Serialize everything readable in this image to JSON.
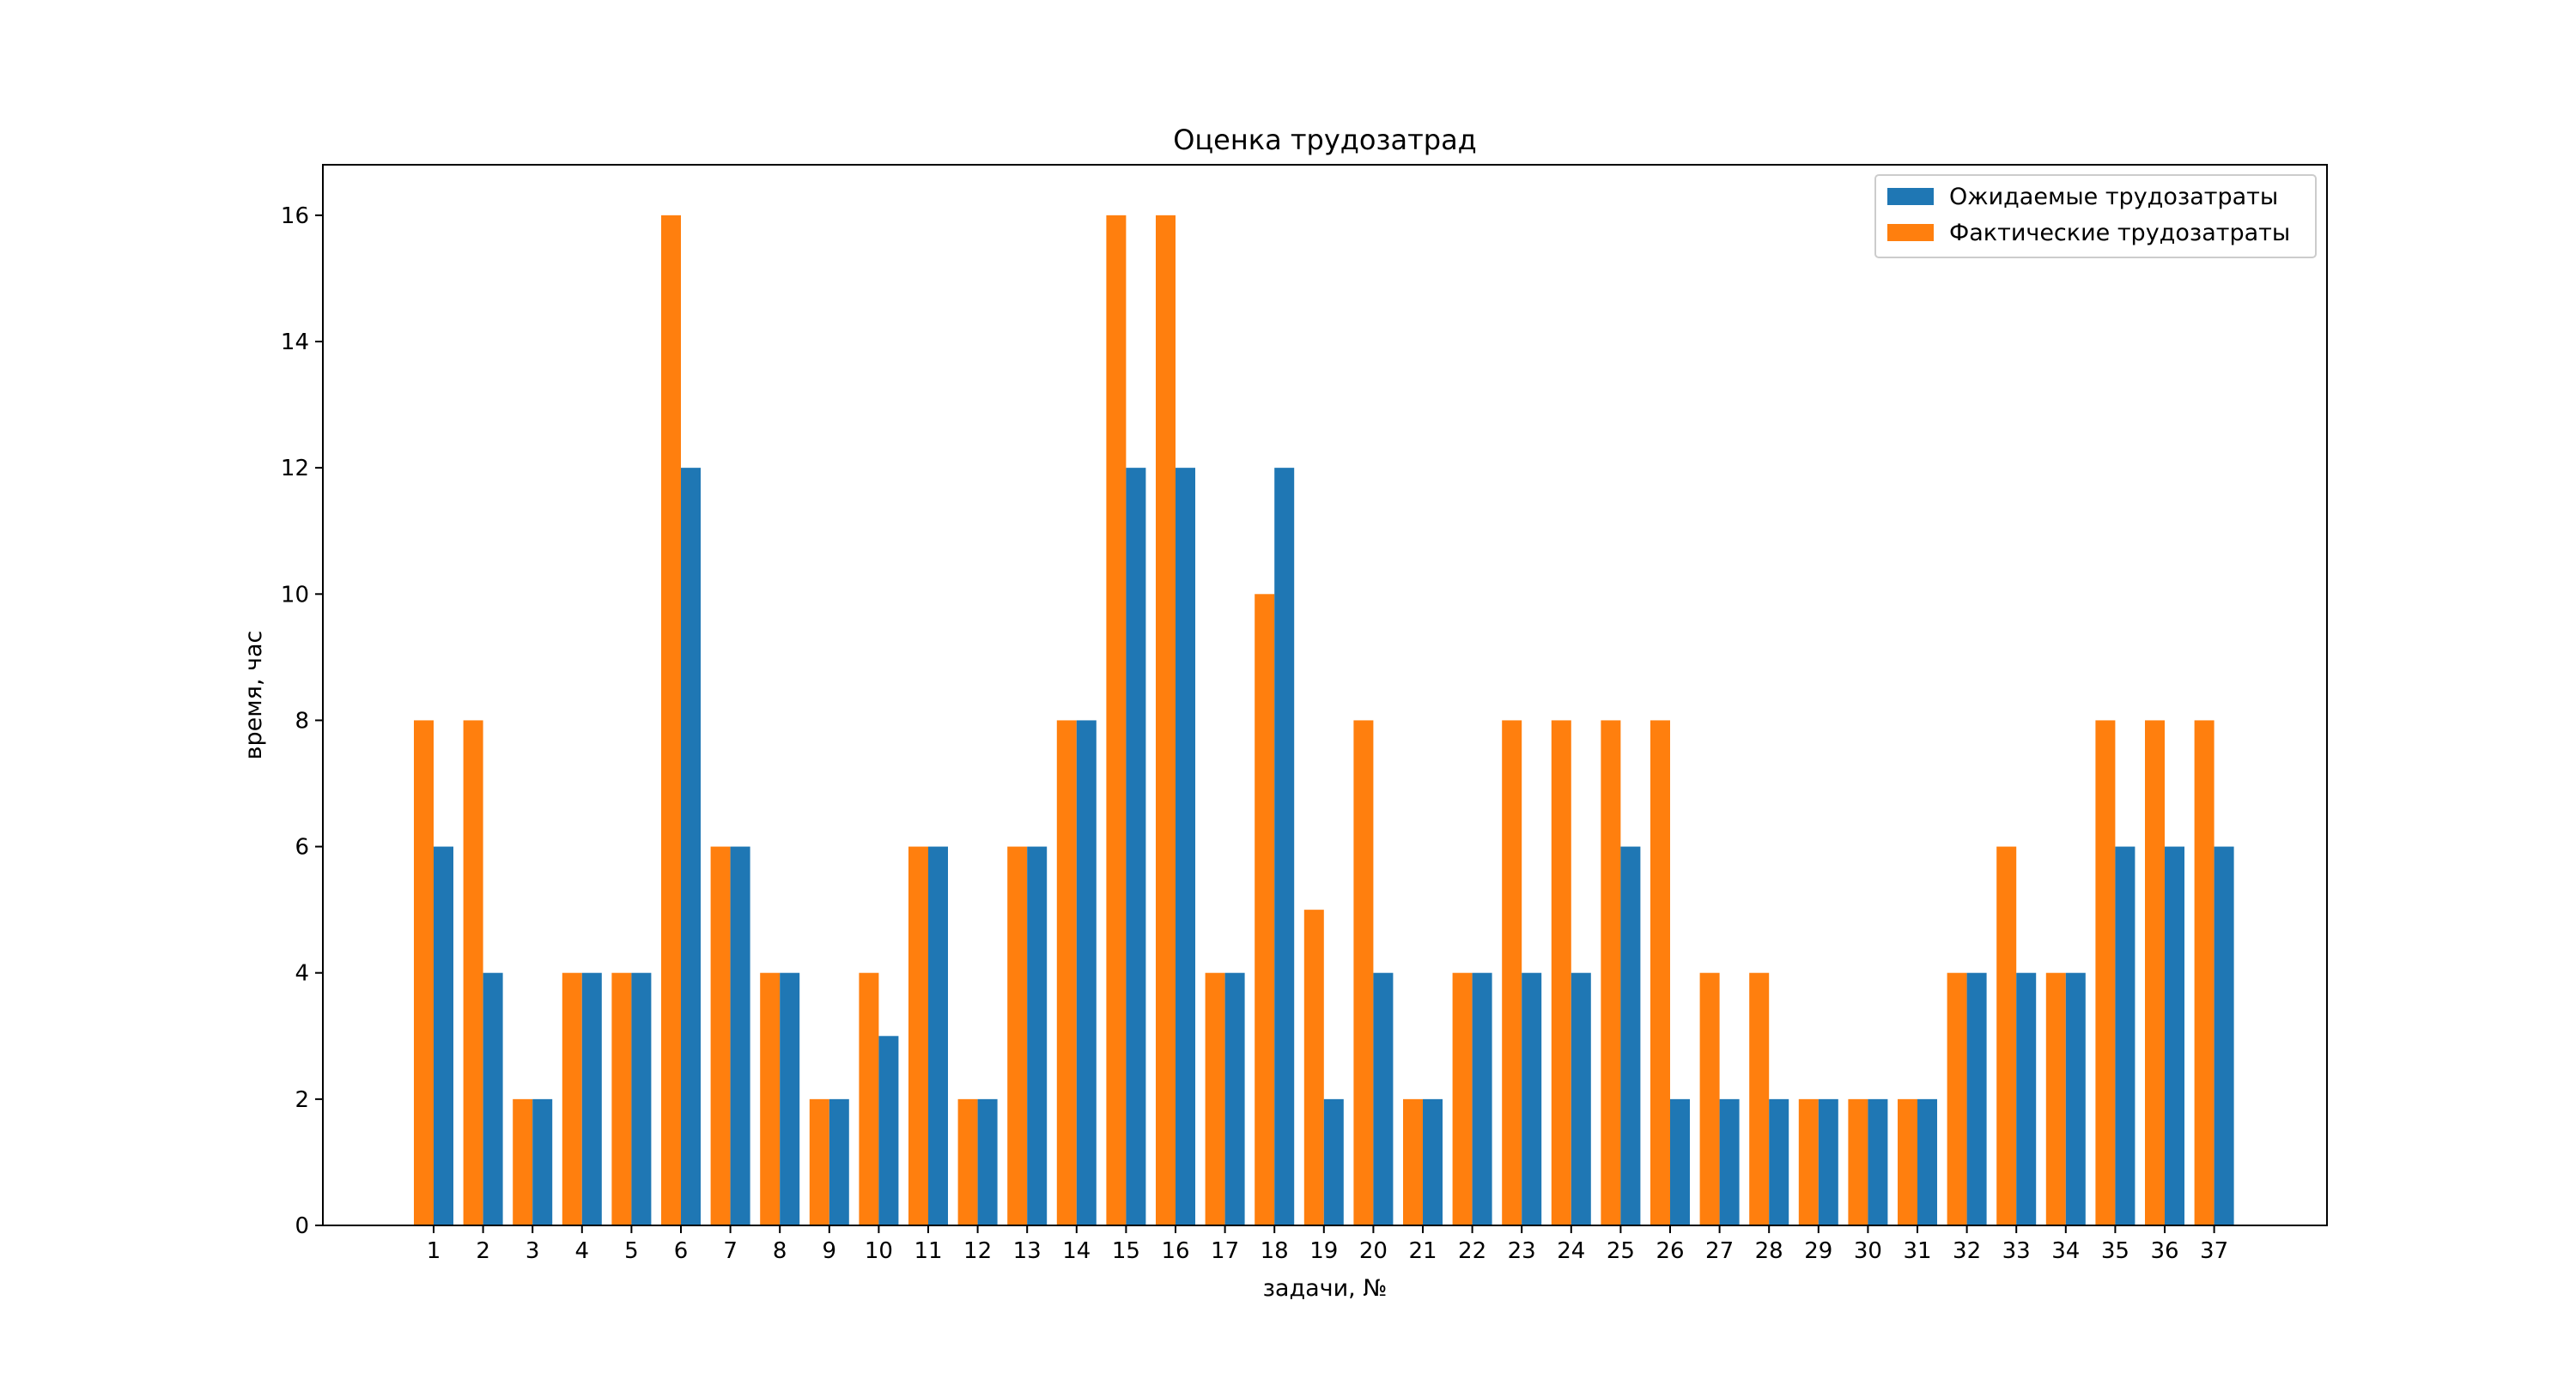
{
  "chart_data": {
    "type": "bar",
    "title": "Оценка трудозатрад",
    "xlabel": "задачи, №",
    "ylabel": "время, час",
    "ylim": [
      0,
      16.8
    ],
    "yticks": [
      0,
      2,
      4,
      6,
      8,
      10,
      12,
      14,
      16
    ],
    "grid": false,
    "legend_position": "top-right",
    "categories": [
      "1",
      "2",
      "3",
      "4",
      "5",
      "6",
      "7",
      "8",
      "9",
      "10",
      "11",
      "12",
      "13",
      "14",
      "15",
      "16",
      "17",
      "18",
      "19",
      "20",
      "21",
      "22",
      "23",
      "24",
      "25",
      "26",
      "27",
      "28",
      "29",
      "30",
      "31",
      "32",
      "33",
      "34",
      "35",
      "36",
      "37"
    ],
    "series": [
      {
        "name": "Ожидаемые трудозатраты",
        "color": "#1f77b4",
        "values": [
          6,
          4,
          2,
          4,
          4,
          12,
          6,
          4,
          2,
          3,
          6,
          2,
          6,
          8,
          12,
          12,
          4,
          12,
          2,
          4,
          2,
          4,
          4,
          4,
          6,
          2,
          2,
          2,
          2,
          2,
          2,
          4,
          4,
          4,
          6,
          6,
          6
        ]
      },
      {
        "name": "Фактические трудозатраты",
        "color": "#ff7f0e",
        "values": [
          8,
          8,
          2,
          4,
          4,
          16,
          6,
          4,
          2,
          4,
          6,
          2,
          6,
          8,
          16,
          16,
          4,
          10,
          5,
          8,
          2,
          4,
          8,
          8,
          8,
          8,
          4,
          4,
          2,
          2,
          2,
          4,
          6,
          4,
          8,
          8,
          8
        ]
      }
    ]
  }
}
